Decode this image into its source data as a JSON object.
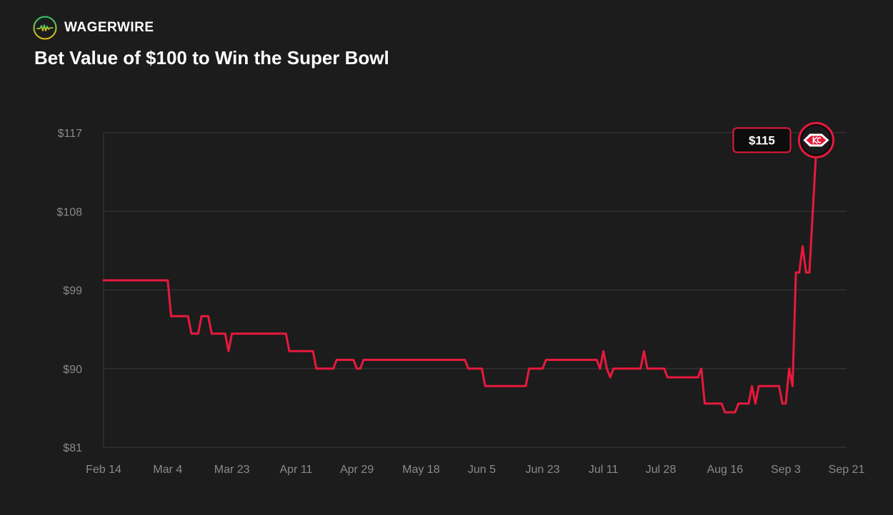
{
  "brand": {
    "name": "WAGERWIRE",
    "icon": "pulse-icon"
  },
  "colors": {
    "background": "#1c1c1c",
    "line": "#e8193c",
    "grid": "#3a3a3a",
    "axis_text": "#8a8a8a",
    "brand_gradient": [
      "#2ecc71",
      "#f1c40f"
    ]
  },
  "chart_data": {
    "type": "line",
    "title": "Bet Value of $100 to Win the Super Bowl",
    "xlabel": "",
    "ylabel": "",
    "ylim": [
      81,
      117
    ],
    "yticks": [
      117,
      108,
      99,
      90,
      81
    ],
    "ytick_labels": [
      "$117",
      "$108",
      "$99",
      "$90",
      "$81"
    ],
    "xlim": [
      "Feb 14",
      "Sep 21"
    ],
    "xticks": [
      "Feb 14",
      "Mar 4",
      "Mar 23",
      "Apr 11",
      "Apr 29",
      "May 18",
      "Jun 5",
      "Jun 23",
      "Jul 11",
      "Jul 28",
      "Aug 16",
      "Sep 3",
      "Sep 21"
    ],
    "grid": true,
    "end_label": "$115",
    "end_icon": "chiefs-logo",
    "series": [
      {
        "points": [
          [
            "Feb 14",
            100.1
          ],
          [
            "Mar 4",
            100.1
          ],
          [
            "Mar 5",
            96
          ],
          [
            "Mar 10",
            96
          ],
          [
            "Mar 11",
            94
          ],
          [
            "Mar 13",
            94
          ],
          [
            "Mar 14",
            96
          ],
          [
            "Mar 16",
            96
          ],
          [
            "Mar 17",
            94
          ],
          [
            "Mar 21",
            94
          ],
          [
            "Mar 22",
            92
          ],
          [
            "Mar 23",
            94
          ],
          [
            "Apr 8",
            94
          ],
          [
            "Apr 9",
            92
          ],
          [
            "Apr 16",
            92
          ],
          [
            "Apr 17",
            90
          ],
          [
            "Apr 22",
            90
          ],
          [
            "Apr 23",
            91
          ],
          [
            "Apr 28",
            91
          ],
          [
            "Apr 29",
            90
          ],
          [
            "Apr 30",
            90
          ],
          [
            "May 1",
            91
          ],
          [
            "May 31",
            91
          ],
          [
            "Jun 1",
            90
          ],
          [
            "Jun 5",
            90
          ],
          [
            "Jun 6",
            88
          ],
          [
            "Jun 18",
            88
          ],
          [
            "Jun 19",
            90
          ],
          [
            "Jun 23",
            90
          ],
          [
            "Jun 24",
            91
          ],
          [
            "Jul 9",
            91
          ],
          [
            "Jul 10",
            90
          ],
          [
            "Jul 11",
            92
          ],
          [
            "Jul 12",
            90
          ],
          [
            "Jul 13",
            89
          ],
          [
            "Jul 14",
            90
          ],
          [
            "Jul 22",
            90
          ],
          [
            "Jul 23",
            92
          ],
          [
            "Jul 24",
            90
          ],
          [
            "Jul 29",
            90
          ],
          [
            "Jul 30",
            89
          ],
          [
            "Aug 8",
            89
          ],
          [
            "Aug 9",
            90
          ],
          [
            "Aug 10",
            86
          ],
          [
            "Aug 15",
            86
          ],
          [
            "Aug 16",
            85
          ],
          [
            "Aug 19",
            85
          ],
          [
            "Aug 20",
            86
          ],
          [
            "Aug 23",
            86
          ],
          [
            "Aug 24",
            88
          ],
          [
            "Aug 25",
            86
          ],
          [
            "Aug 26",
            88
          ],
          [
            "Sep 1",
            88
          ],
          [
            "Sep 2",
            86
          ],
          [
            "Sep 3",
            86
          ],
          [
            "Sep 4",
            90
          ],
          [
            "Sep 5",
            88
          ],
          [
            "Sep 6",
            101
          ],
          [
            "Sep 7",
            101
          ],
          [
            "Sep 8",
            104
          ],
          [
            "Sep 9",
            101
          ],
          [
            "Sep 10",
            101
          ],
          [
            "Sep 11",
            108
          ],
          [
            "Sep 12",
            115
          ]
        ]
      }
    ]
  }
}
